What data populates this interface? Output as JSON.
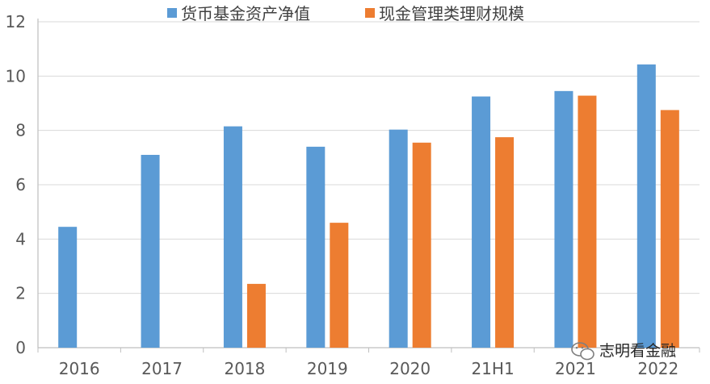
{
  "chart_data": {
    "type": "bar",
    "categories": [
      "2016",
      "2017",
      "2018",
      "2019",
      "2020",
      "21H1",
      "2021",
      "2022"
    ],
    "series": [
      {
        "name": "货币基金资产净值",
        "color": "#5B9BD5",
        "values": [
          4.45,
          7.1,
          8.15,
          7.4,
          8.03,
          9.25,
          9.45,
          10.43
        ]
      },
      {
        "name": "现金管理类理财规模",
        "color": "#ED7D31",
        "values": [
          null,
          null,
          2.35,
          4.6,
          7.55,
          7.75,
          9.28,
          8.75
        ]
      }
    ],
    "ylim": [
      0,
      12
    ],
    "yticks": [
      "0",
      "2",
      "4",
      "6",
      "8",
      "10",
      "12"
    ],
    "grid": true,
    "legend": "top"
  },
  "watermark": {
    "text": "志明看金融",
    "icon": "wechat-icon"
  }
}
